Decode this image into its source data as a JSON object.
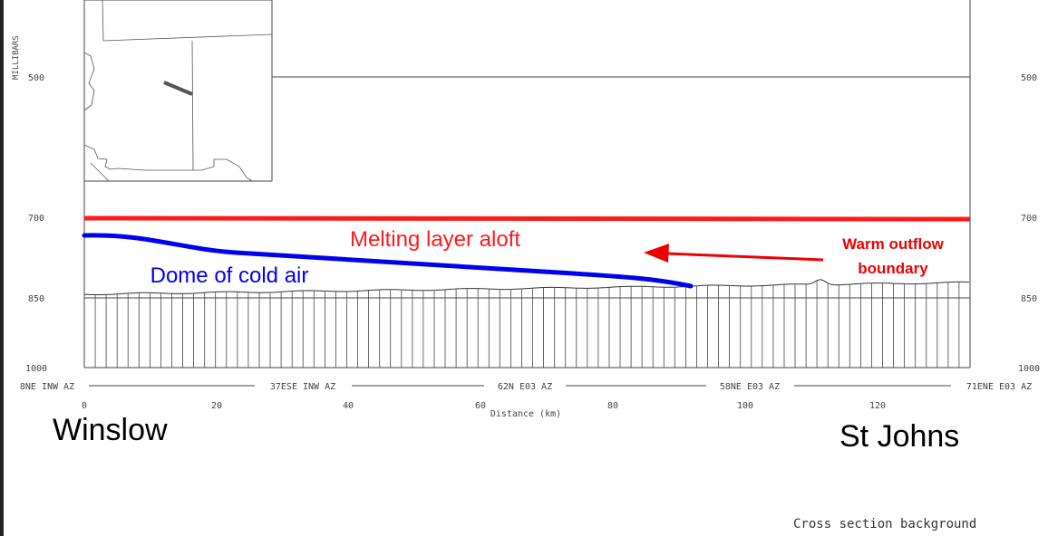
{
  "y_axis": {
    "title": "MILLIBARS",
    "ticks": [
      {
        "label": "500",
        "value": 500
      },
      {
        "label": "700",
        "value": 700
      },
      {
        "label": "850",
        "value": 850
      },
      {
        "label": "1000",
        "value": 1000
      }
    ]
  },
  "x_axis": {
    "title": "Distance (km)",
    "range": [
      0,
      134
    ],
    "ticks": [
      {
        "label": "0",
        "value": 0
      },
      {
        "label": "20",
        "value": 20
      },
      {
        "label": "40",
        "value": 40
      },
      {
        "label": "60",
        "value": 60
      },
      {
        "label": "80",
        "value": 80
      },
      {
        "label": "100",
        "value": 100
      },
      {
        "label": "120",
        "value": 120
      }
    ],
    "stations": [
      {
        "label": "8NE INW AZ",
        "km": 0
      },
      {
        "label": "37ESE INW AZ",
        "km": 33.5
      },
      {
        "label": "62N E03 AZ",
        "km": 67
      },
      {
        "label": "58NE E03 AZ",
        "km": 100.5
      },
      {
        "label": "71ENE E03 AZ",
        "km": 134
      }
    ]
  },
  "annotations": {
    "melting_layer": "Melting layer aloft",
    "cold_dome": "Dome of cold air",
    "outflow_line1": "Warm outflow",
    "outflow_line2": "boundary",
    "left_city": "Winslow",
    "right_city": "St Johns",
    "caption": "Cross section background"
  },
  "colors": {
    "melting_layer": "#ff1a1a",
    "cold_dome": "#0000ee",
    "outflow": "#ee0000",
    "terrain": "#000000"
  }
}
